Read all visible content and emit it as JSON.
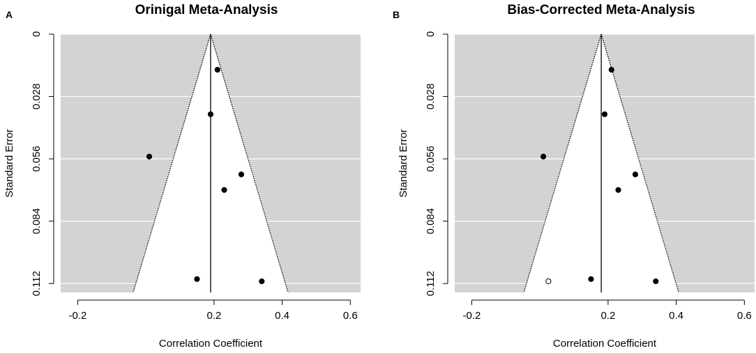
{
  "chart_data": [
    {
      "type": "scatter",
      "subtype": "funnel-plot",
      "panel": "A",
      "title": "Orinigal Meta-Analysis",
      "xlabel": "Correlation Coefficient",
      "ylabel": "Standard Error",
      "xlim": [
        -0.25,
        0.63
      ],
      "ylim": [
        0.116,
        0
      ],
      "xticks": [
        "-0.2",
        "0.2",
        "0.4",
        "0.6"
      ],
      "yticks": [
        "0",
        "0.028",
        "0.056",
        "0.084",
        "0.112"
      ],
      "pooled_estimate": 0.19,
      "funnel_max_se": 0.116,
      "points": [
        {
          "x": 0.21,
          "y": 0.016,
          "imputed": false
        },
        {
          "x": 0.19,
          "y": 0.036,
          "imputed": false
        },
        {
          "x": 0.01,
          "y": 0.055,
          "imputed": false
        },
        {
          "x": 0.28,
          "y": 0.063,
          "imputed": false
        },
        {
          "x": 0.23,
          "y": 0.07,
          "imputed": false
        },
        {
          "x": 0.15,
          "y": 0.11,
          "imputed": false
        },
        {
          "x": 0.34,
          "y": 0.111,
          "imputed": false
        }
      ],
      "colors": {
        "background": "#d3d3d3",
        "funnel": "#ffffff",
        "grid": "#ffffff",
        "ink": "#000000"
      }
    },
    {
      "type": "scatter",
      "subtype": "funnel-plot",
      "panel": "B",
      "title": "Bias-Corrected Meta-Analysis",
      "xlabel": "Correlation Coefficient",
      "ylabel": "Standard Error",
      "xlim": [
        -0.25,
        0.63
      ],
      "ylim": [
        0.116,
        0
      ],
      "xticks": [
        "-0.2",
        "0.2",
        "0.4",
        "0.6"
      ],
      "yticks": [
        "0",
        "0.028",
        "0.056",
        "0.084",
        "0.112"
      ],
      "pooled_estimate": 0.18,
      "funnel_max_se": 0.116,
      "points": [
        {
          "x": 0.21,
          "y": 0.016,
          "imputed": false
        },
        {
          "x": 0.19,
          "y": 0.036,
          "imputed": false
        },
        {
          "x": 0.01,
          "y": 0.055,
          "imputed": false
        },
        {
          "x": 0.28,
          "y": 0.063,
          "imputed": false
        },
        {
          "x": 0.23,
          "y": 0.07,
          "imputed": false
        },
        {
          "x": 0.025,
          "y": 0.111,
          "imputed": true
        },
        {
          "x": 0.15,
          "y": 0.11,
          "imputed": false
        },
        {
          "x": 0.34,
          "y": 0.111,
          "imputed": false
        }
      ],
      "colors": {
        "background": "#d3d3d3",
        "funnel": "#ffffff",
        "grid": "#ffffff",
        "ink": "#000000"
      }
    }
  ]
}
